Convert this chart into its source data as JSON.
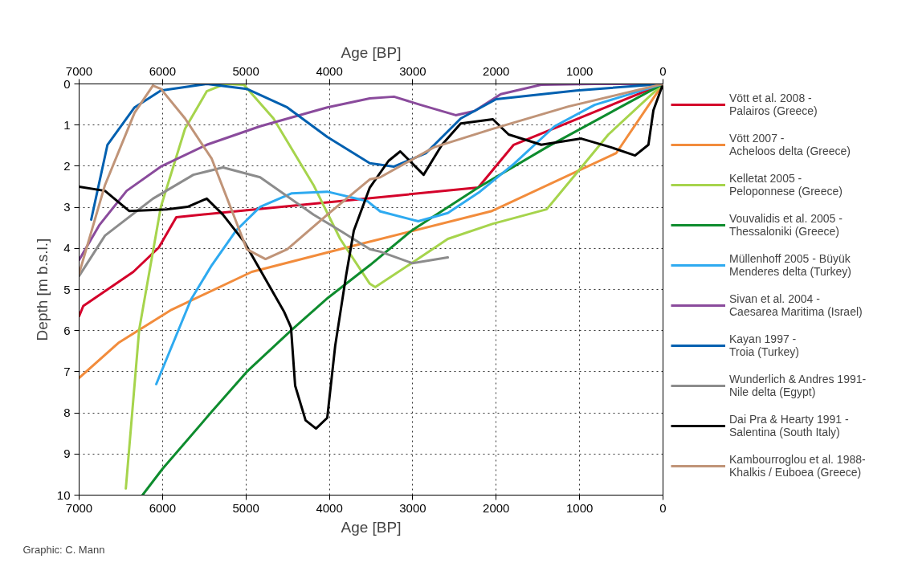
{
  "chart_data": {
    "type": "line",
    "xlabel": "Age [BP]",
    "x2label": "Age [BP]",
    "ylabel": "Depth [m b.s.l.]",
    "xlim": [
      7000,
      0
    ],
    "xticks": [
      7000,
      6000,
      5000,
      4000,
      3000,
      2000,
      1000,
      0
    ],
    "x2lim": [
      7000,
      0
    ],
    "x2ticks": [
      7000,
      6000,
      5000,
      4000,
      3000,
      2000,
      1000,
      0
    ],
    "ylim": [
      10,
      0
    ],
    "yticks": [
      0,
      1,
      2,
      3,
      4,
      5,
      6,
      7,
      8,
      9,
      10
    ],
    "grid": true,
    "legend": "right",
    "marker": "none",
    "line_style": "solid",
    "annotations": [
      "Graphic: C. Mann"
    ],
    "series": [
      {
        "name": "Vött et al. 2008 -\nPalairos (Greece)",
        "color": "#d4002a",
        "x": [
          7000,
          6950,
          6350,
          6045,
          5835,
          2215,
          1790,
          0
        ],
        "values": [
          5.65,
          5.4,
          4.57,
          3.98,
          3.24,
          2.52,
          1.48,
          0
        ]
      },
      {
        "name": "Vött 2007 -\nAcheloos delta (Greece)",
        "color": "#f28c3c",
        "x": [
          7000,
          6530,
          5890,
          4930,
          3700,
          2050,
          560,
          0
        ],
        "values": [
          7.15,
          6.3,
          5.49,
          4.57,
          3.93,
          3.09,
          1.68,
          0
        ]
      },
      {
        "name": "Kelletat 2005 -\nPeloponnese (Greece)",
        "color": "#a6d44c",
        "x": [
          6440,
          6280,
          6230,
          6020,
          5730,
          5470,
          5250,
          5025,
          4670,
          4190,
          3870,
          3515,
          3450,
          3015,
          2580,
          2040,
          1395,
          980,
          655,
          0
        ],
        "values": [
          9.84,
          5.98,
          5.4,
          2.99,
          1.09,
          0.18,
          0,
          0.02,
          0.84,
          2.46,
          3.77,
          4.86,
          4.94,
          4.36,
          3.77,
          3.4,
          3.05,
          2.03,
          1.23,
          0
        ]
      },
      {
        "name": "Vouvalidis et al. 2005 -\nThessaloniki (Greece)",
        "color": "#0e8c2e",
        "x": [
          6240,
          6000,
          5410,
          4990,
          4450,
          4015,
          3515,
          3015,
          2215,
          1395,
          0
        ],
        "values": [
          10.0,
          9.36,
          7.97,
          7.0,
          5.98,
          5.2,
          4.41,
          3.57,
          2.52,
          1.54,
          0
        ]
      },
      {
        "name": "Müllenhoff 2005 - Büyük\nMenderes delta (Turkey)",
        "color": "#2eaaf0",
        "x": [
          6075,
          5660,
          5410,
          5120,
          4830,
          4450,
          4025,
          3545,
          3390,
          2935,
          2580,
          2195,
          1780,
          1300,
          820,
          0
        ],
        "values": [
          7.3,
          5.25,
          4.41,
          3.57,
          2.99,
          2.66,
          2.62,
          2.85,
          3.1,
          3.34,
          3.14,
          2.62,
          1.93,
          1.03,
          0.51,
          0
        ]
      },
      {
        "name": "Sivan et al. 2004 -\nCaesarea Maritima (Israel)",
        "color": "#8a4b9c",
        "x": [
          7000,
          6760,
          6430,
          6020,
          5470,
          4830,
          4025,
          3515,
          3225,
          2905,
          2485,
          2260,
          1945,
          1460,
          820,
          0
        ],
        "values": [
          4.28,
          3.44,
          2.6,
          2.01,
          1.48,
          1.03,
          0.57,
          0.35,
          0.31,
          0.51,
          0.76,
          0.66,
          0.25,
          0.02,
          0,
          0
        ]
      },
      {
        "name": "Kayan 1997 -\nTroia (Turkey)",
        "color": "#0060b0",
        "x": [
          6855,
          6660,
          6335,
          6020,
          5470,
          4990,
          4505,
          4025,
          3515,
          3225,
          2840,
          2425,
          2000,
          1040,
          0
        ],
        "values": [
          3.3,
          1.48,
          0.57,
          0.16,
          0,
          0.12,
          0.57,
          1.29,
          1.93,
          2.01,
          1.68,
          0.84,
          0.37,
          0.16,
          0
        ]
      },
      {
        "name": "Wunderlich & Andres 1991-\nNile delta (Egypt)",
        "color": "#8c8c8c",
        "x": [
          7000,
          6690,
          6115,
          5630,
          5275,
          4830,
          4190,
          3870,
          3515,
          3390,
          3005,
          2580
        ],
        "values": [
          4.67,
          3.69,
          2.79,
          2.21,
          2.03,
          2.27,
          3.18,
          3.57,
          4.02,
          4.08,
          4.36,
          4.22
        ]
      },
      {
        "name": "Dai Pra & Hearty 1991 -\nSalentina (South Italy)",
        "color": "#000000",
        "x": [
          7000,
          6690,
          6400,
          5950,
          5700,
          5470,
          5275,
          5025,
          4765,
          4545,
          4460,
          4410,
          4285,
          4160,
          4025,
          3930,
          3800,
          3707,
          3515,
          3290,
          3150,
          2870,
          2650,
          2425,
          2040,
          1850,
          1460,
          980,
          625,
          335,
          175,
          115,
          0
        ],
        "values": [
          2.5,
          2.6,
          3.09,
          3.05,
          2.99,
          2.79,
          3.18,
          3.83,
          4.75,
          5.53,
          5.92,
          7.34,
          8.18,
          8.38,
          8.12,
          6.37,
          4.67,
          3.57,
          2.52,
          1.87,
          1.64,
          2.21,
          1.48,
          0.96,
          0.86,
          1.23,
          1.48,
          1.33,
          1.54,
          1.74,
          1.48,
          0.64,
          0
        ]
      },
      {
        "name": "Kambourroglou et al. 1988-\nKhalkis / Euboea (Greece)",
        "color": "#c09478",
        "x": [
          7000,
          6690,
          6335,
          6115,
          6020,
          5730,
          5410,
          5150,
          4990,
          4765,
          4505,
          4025,
          3515,
          3390,
          2745,
          2040,
          1135,
          0
        ],
        "values": [
          4.61,
          2.46,
          0.7,
          0.04,
          0.12,
          0.84,
          1.82,
          3.18,
          4.02,
          4.26,
          4.02,
          3.18,
          2.32,
          2.27,
          1.54,
          1.09,
          0.55,
          0
        ]
      }
    ]
  }
}
